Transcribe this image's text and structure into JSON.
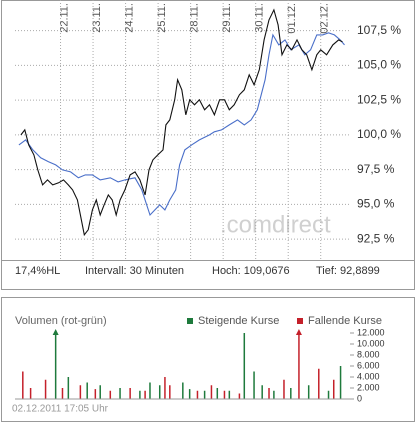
{
  "chart_data": [
    {
      "type": "line",
      "xticks": [
        {
          "value": 1,
          "label": "22.11."
        },
        {
          "value": 2,
          "label": "23.11."
        },
        {
          "value": 3,
          "label": "24.11."
        },
        {
          "value": 4,
          "label": "25.11."
        },
        {
          "value": 5,
          "label": "28.11."
        },
        {
          "value": 6,
          "label": "29.11."
        },
        {
          "value": 7,
          "label": "30.11."
        },
        {
          "value": 8,
          "label": "01.12."
        },
        {
          "value": 9,
          "label": "02.12."
        }
      ],
      "xlim": [
        -0.4,
        9.9
      ],
      "ylim": [
        91.0,
        109.7
      ],
      "yticks": [
        {
          "value": 92.5,
          "label": "92,5 %"
        },
        {
          "value": 95,
          "label": "95,0 %"
        },
        {
          "value": 97.5,
          "label": "97,5 %"
        },
        {
          "value": 100,
          "label": "100,0 %"
        },
        {
          "value": 102.5,
          "label": "102,5 %"
        },
        {
          "value": 105,
          "label": "105,0 %"
        },
        {
          "value": 107.5,
          "label": "107,5 %"
        }
      ],
      "grid": true,
      "watermark": ".comdirect",
      "annotations": [
        "17,4%HL",
        "Intervall: 30 Minuten",
        "Hoch: 109,0676",
        "Tief: 92,8899"
      ],
      "series": [
        {
          "color": "#4a6fc9",
          "x": [
            -0.28,
            -0.07,
            0.15,
            0.39,
            0.63,
            0.85,
            1.06,
            1.31,
            1.55,
            1.76,
            1.98,
            2.22,
            2.53,
            2.77,
            2.98,
            3.29,
            3.5,
            3.75,
            3.9,
            4.05,
            4.21,
            4.36,
            4.54,
            4.66,
            4.82,
            5.03,
            5.27,
            5.58,
            5.73,
            5.95,
            6.19,
            6.44,
            6.65,
            6.86,
            7.05,
            7.17,
            7.29,
            7.41,
            7.53,
            7.71,
            7.9,
            8.08,
            8.33,
            8.51,
            8.69,
            8.88,
            9.06,
            9.24,
            9.42,
            9.6,
            9.73
          ],
          "values": [
            99.28,
            99.64,
            98.92,
            98.35,
            98.06,
            97.84,
            97.48,
            97.34,
            96.91,
            97.12,
            97.12,
            96.76,
            96.91,
            96.62,
            96.76,
            96.91,
            96.04,
            94.24,
            94.6,
            94.96,
            94.6,
            95.32,
            96.04,
            97.84,
            98.92,
            99.28,
            99.64,
            100.0,
            100.22,
            100.36,
            100.72,
            101.08,
            100.72,
            101.08,
            101.8,
            102.88,
            103.96,
            105.76,
            107.19,
            106.47,
            106.83,
            106.12,
            106.47,
            105.76,
            106.12,
            107.19,
            107.19,
            107.34,
            107.19,
            106.83,
            106.47
          ]
        },
        {
          "color": "#111111",
          "x": [
            -0.22,
            -0.1,
            0.02,
            0.18,
            0.3,
            0.45,
            0.6,
            0.76,
            0.94,
            1.09,
            1.24,
            1.37,
            1.52,
            1.61,
            1.73,
            1.85,
            1.98,
            2.1,
            2.22,
            2.34,
            2.47,
            2.59,
            2.71,
            2.83,
            2.98,
            3.14,
            3.29,
            3.44,
            3.6,
            3.72,
            3.84,
            3.99,
            4.15,
            4.24,
            4.36,
            4.51,
            4.6,
            4.73,
            4.85,
            4.97,
            5.12,
            5.27,
            5.43,
            5.58,
            5.73,
            5.89,
            6.04,
            6.19,
            6.34,
            6.5,
            6.65,
            6.8,
            6.95,
            7.11,
            7.26,
            7.41,
            7.56,
            7.69,
            7.81,
            7.96,
            8.11,
            8.27,
            8.42,
            8.57,
            8.73,
            8.88,
            9.0,
            9.18,
            9.37,
            9.55,
            9.67
          ],
          "values": [
            100.0,
            100.36,
            99.28,
            98.56,
            97.48,
            96.4,
            96.76,
            96.4,
            96.55,
            96.76,
            96.4,
            96.04,
            95.32,
            94.24,
            92.81,
            93.17,
            94.6,
            95.32,
            94.24,
            94.96,
            95.68,
            95.32,
            94.24,
            95.32,
            96.04,
            97.12,
            97.34,
            96.76,
            95.68,
            97.48,
            98.2,
            98.56,
            98.92,
            100.72,
            101.08,
            102.52,
            103.96,
            103.24,
            101.44,
            102.52,
            102.16,
            102.52,
            101.8,
            102.16,
            101.44,
            102.52,
            102.52,
            101.8,
            102.16,
            102.88,
            103.24,
            104.32,
            103.6,
            104.68,
            106.83,
            108.27,
            108.99,
            107.91,
            105.76,
            106.47,
            106.12,
            106.83,
            106.12,
            105.76,
            104.68,
            105.76,
            106.12,
            105.76,
            106.47,
            106.83,
            106.69
          ]
        }
      ]
    },
    {
      "type": "bar",
      "title": "Volumen (rot-grün)",
      "footer": "02.12.2011 17:05 Uhr",
      "xlim": [
        -0.4,
        9.9
      ],
      "ylim": [
        0,
        12000
      ],
      "yticks": [
        0,
        {
          "value": 2000,
          "label": "2.000"
        },
        {
          "value": 4000,
          "label": "4.000"
        },
        {
          "value": 6000,
          "label": "6.000"
        },
        {
          "value": 8000,
          "label": "8.000"
        },
        {
          "value": 10000,
          "label": "10.000"
        },
        {
          "value": 12000,
          "label": "12.000"
        }
      ],
      "series": [
        {
          "name": "Steigende Kurse",
          "color": "#1e7a3c",
          "x": [
            0.85,
            1.24,
            1.82,
            2.22,
            2.83,
            3.44,
            3.75,
            4.05,
            4.76,
            4.97,
            5.43,
            5.82,
            6.19,
            6.65,
            6.95,
            7.2,
            7.56,
            8.08,
            8.63,
            9.24,
            9.61
          ],
          "values": [
            12500,
            4000,
            3000,
            2500,
            2000,
            1500,
            3000,
            2500,
            3000,
            1800,
            1500,
            2000,
            1500,
            12000,
            5000,
            2500,
            1500,
            2000,
            2500,
            1500,
            6000
          ]
        },
        {
          "name": "Fallende Kurse",
          "color": "#c4202a",
          "x": [
            -0.16,
            0.08,
            0.54,
            1.06,
            1.61,
            2.07,
            2.53,
            3.14,
            3.6,
            4.21,
            4.36,
            5.21,
            5.64,
            6.04,
            6.5,
            7.41,
            7.87,
            8.33,
            8.94,
            9.4
          ],
          "values": [
            5000,
            2000,
            3500,
            2000,
            2500,
            1800,
            1500,
            2000,
            1500,
            4000,
            2500,
            1500,
            2500,
            1500,
            1000,
            2000,
            3500,
            12500,
            5500,
            3500
          ]
        }
      ]
    }
  ]
}
